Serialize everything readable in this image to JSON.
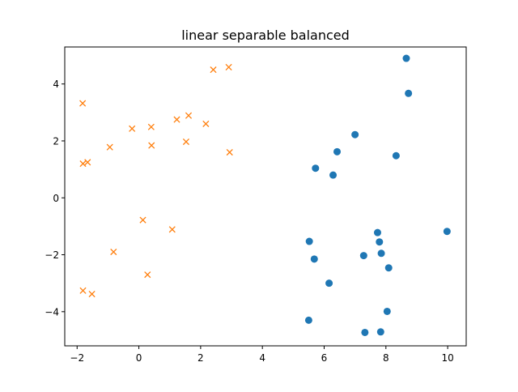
{
  "chart_data": {
    "type": "scatter",
    "title": "linear separable balanced",
    "xlabel": "",
    "ylabel": "",
    "xlim": [
      -2.4,
      10.6
    ],
    "ylim": [
      -5.2,
      5.3
    ],
    "xticks": [
      -2,
      0,
      2,
      4,
      6,
      8,
      10
    ],
    "yticks": [
      -4,
      -2,
      0,
      2,
      4
    ],
    "xtick_labels": [
      "−2",
      "0",
      "2",
      "4",
      "6",
      "8",
      "10"
    ],
    "ytick_labels": [
      "−4",
      "−2",
      "0",
      "2",
      "4"
    ],
    "grid": false,
    "series": [
      {
        "marker": "circle",
        "color": "#1f77b4",
        "points": [
          [
            8.66,
            4.9
          ],
          [
            8.73,
            3.67
          ],
          [
            7.0,
            2.22
          ],
          [
            6.42,
            1.62
          ],
          [
            8.33,
            1.48
          ],
          [
            5.72,
            1.04
          ],
          [
            6.29,
            0.8
          ],
          [
            9.98,
            -1.18
          ],
          [
            7.73,
            -1.22
          ],
          [
            5.52,
            -1.53
          ],
          [
            7.79,
            -1.55
          ],
          [
            7.85,
            -1.95
          ],
          [
            7.28,
            -2.03
          ],
          [
            5.68,
            -2.15
          ],
          [
            8.09,
            -2.46
          ],
          [
            6.16,
            -3.0
          ],
          [
            8.04,
            -3.99
          ],
          [
            5.5,
            -4.3
          ],
          [
            7.32,
            -4.73
          ],
          [
            7.83,
            -4.71
          ]
        ]
      },
      {
        "marker": "x",
        "color": "#ff7f0e",
        "points": [
          [
            2.91,
            4.59
          ],
          [
            2.41,
            4.5
          ],
          [
            -1.82,
            3.32
          ],
          [
            1.61,
            2.89
          ],
          [
            1.23,
            2.75
          ],
          [
            2.17,
            2.6
          ],
          [
            0.4,
            2.49
          ],
          [
            -0.22,
            2.43
          ],
          [
            1.53,
            1.97
          ],
          [
            0.41,
            1.84
          ],
          [
            -0.94,
            1.78
          ],
          [
            2.94,
            1.6
          ],
          [
            -1.66,
            1.25
          ],
          [
            -1.81,
            1.2
          ],
          [
            0.13,
            -0.78
          ],
          [
            1.08,
            -1.11
          ],
          [
            -0.82,
            -1.9
          ],
          [
            0.28,
            -2.7
          ],
          [
            -1.81,
            -3.26
          ],
          [
            -1.52,
            -3.38
          ]
        ]
      }
    ]
  }
}
